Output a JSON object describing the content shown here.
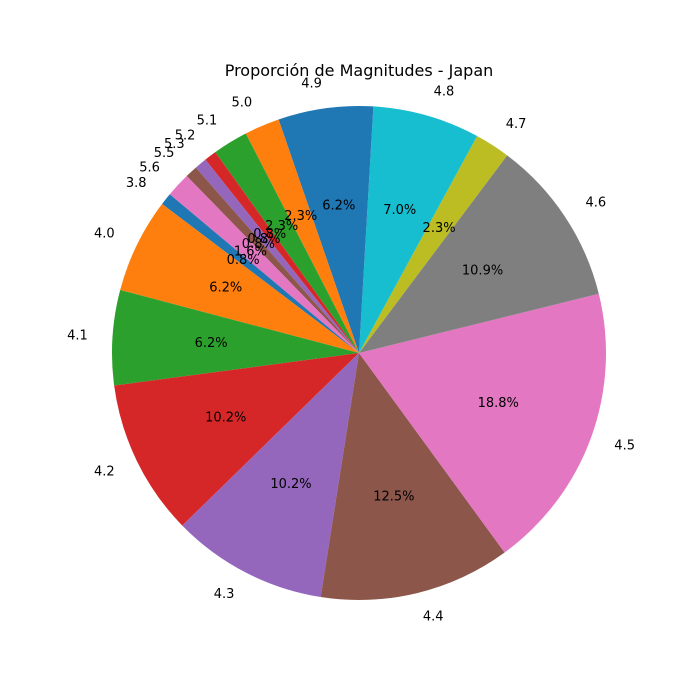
{
  "chart_data": {
    "type": "pie",
    "title": "Proporción de Magnitudes - Japan",
    "start_angle_deg": 140,
    "direction": "counterclockwise",
    "slices": [
      {
        "label": "3.8",
        "percent": 0.8,
        "color": "#1f77b4"
      },
      {
        "label": "4.0",
        "percent": 6.2,
        "color": "#ff7f0e"
      },
      {
        "label": "4.1",
        "percent": 6.2,
        "color": "#2ca02c"
      },
      {
        "label": "4.2",
        "percent": 10.2,
        "color": "#d62728"
      },
      {
        "label": "4.3",
        "percent": 10.2,
        "color": "#9467bd"
      },
      {
        "label": "4.4",
        "percent": 12.5,
        "color": "#8c564b"
      },
      {
        "label": "4.5",
        "percent": 18.8,
        "color": "#e377c2"
      },
      {
        "label": "4.6",
        "percent": 10.9,
        "color": "#7f7f7f"
      },
      {
        "label": "4.7",
        "percent": 2.3,
        "color": "#bcbd22"
      },
      {
        "label": "4.8",
        "percent": 7.0,
        "color": "#17becf"
      },
      {
        "label": "4.9",
        "percent": 6.2,
        "color": "#1f77b4"
      },
      {
        "label": "5.0",
        "percent": 2.3,
        "color": "#ff7f0e"
      },
      {
        "label": "5.1",
        "percent": 2.3,
        "color": "#2ca02c"
      },
      {
        "label": "5.2",
        "percent": 0.8,
        "color": "#d62728"
      },
      {
        "label": "5.3",
        "percent": 0.8,
        "color": "#9467bd"
      },
      {
        "label": "5.5",
        "percent": 0.8,
        "color": "#8c564b"
      },
      {
        "label": "5.6",
        "percent": 1.6,
        "color": "#e377c2"
      }
    ]
  }
}
